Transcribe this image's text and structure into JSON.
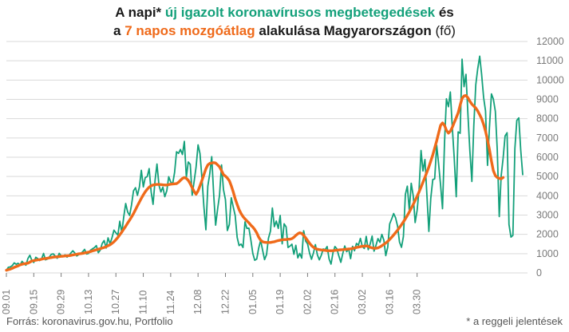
{
  "title": {
    "l1_a": "A napi* ",
    "l1_b": "új igazolt koronavírusos megbetegedések",
    "l1_c": " és",
    "l2_a": "a ",
    "l2_b": "7 napos mozgóátlag",
    "l2_c": " alakulása Magyarországon",
    "l2_d": " (fő)"
  },
  "footer": {
    "source": "Forrás: koronavirus.gov.hu, Portfolio",
    "note": "* a reggeli jelentések"
  },
  "colors": {
    "daily": "#13a07a",
    "avg": "#ef6a1a",
    "grid": "#d9d9d9",
    "text": "#7a7a7a"
  },
  "chart_data": {
    "type": "line",
    "x_start": "2020-09-01",
    "xticks": [
      "09.01",
      "09.15",
      "09.29",
      "10.13",
      "10.27",
      "11.10",
      "11.24",
      "12.08",
      "12.22",
      "01.05",
      "01.19",
      "02.02",
      "02.16",
      "03.02",
      "03.16",
      "03.30"
    ],
    "yticks": [
      0,
      1000,
      2000,
      3000,
      4000,
      5000,
      6000,
      7000,
      8000,
      9000,
      10000,
      11000,
      12000
    ],
    "ylim": [
      0,
      12000
    ],
    "grid": "horizontal",
    "series": [
      {
        "name": "új igazolt koronavírusos megbetegedések",
        "type": "daily",
        "values": [
          140,
          292,
          310,
          380,
          520,
          450,
          500,
          420,
          600,
          480,
          400,
          750,
          920,
          650,
          540,
          810,
          750,
          640,
          730,
          1010,
          680,
          720,
          830,
          970,
          990,
          870,
          760,
          1020,
          900,
          870,
          940,
          820,
          910,
          1040,
          1150,
          1030,
          880,
          950,
          1000,
          1100,
          1220,
          980,
          1010,
          1180,
          1250,
          1310,
          1420,
          1050,
          1180,
          1530,
          1680,
          1290,
          1820,
          1510,
          1820,
          2220,
          2080,
          1960,
          2680,
          2090,
          2890,
          3600,
          3170,
          2980,
          3520,
          4260,
          4420,
          4020,
          4460,
          5320,
          4460,
          4940,
          5000,
          5410,
          4200,
          3560,
          4800,
          5650,
          4540,
          4200,
          4450,
          3950,
          4260,
          4990,
          4720,
          4600,
          5220,
          6280,
          6200,
          6400,
          6140,
          6820,
          4960,
          5750,
          5630,
          4030,
          4760,
          5490,
          6640,
          6190,
          4890,
          3430,
          2240,
          4500,
          5160,
          6030,
          4050,
          2480,
          3320,
          4030,
          5600,
          4330,
          3800,
          2200,
          2510,
          3900,
          3420,
          2980,
          1840,
          1420,
          1500,
          1320,
          2650,
          2310,
          2320,
          1720,
          1010,
          660,
          720,
          1280,
          1690,
          1190,
          690,
          950,
          1800,
          2170,
          3370,
          2400,
          2690,
          2310,
          2980,
          1510,
          2550,
          2390,
          1320,
          1390,
          1490,
          970,
          1430,
          780,
          1010,
          770,
          2190,
          1650,
          1510,
          1030,
          710,
          1040,
          1470,
          940,
          680,
          920,
          1240,
          1210,
          1370,
          720,
          460,
          1060,
          1370,
          1240,
          880,
          550,
          1000,
          1400,
          1100,
          1250,
          740,
          1380,
          1150,
          1530,
          1440,
          1790,
          1370,
          1270,
          1900,
          1210,
          1500,
          1910,
          1130,
          1440,
          1780,
          1590,
          2000,
          1700,
          900,
          1350,
          2540,
          2800,
          3080,
          2860,
          2430,
          1600,
          1330,
          1890,
          4080,
          4500,
          3240,
          4650,
          4000,
          2610,
          3250,
          4320,
          6350,
          5290,
          5880,
          4080,
          2150,
          3870,
          4840,
          4880,
          6620,
          5660,
          4550,
          3330,
          6730,
          9030,
          8620,
          9380,
          7530,
          5940,
          3950,
          7310,
          7240,
          11080,
          9660,
          10300,
          8180,
          6310,
          4740,
          7630,
          9760,
          10580,
          11240,
          10300,
          9100,
          8400,
          5580,
          7530,
          9280,
          9020,
          8380,
          6390,
          2920,
          5030,
          5970,
          7100,
          7270,
          2510,
          1860,
          1950,
          6460,
          7910,
          8040,
          6380,
          5100
        ]
      },
      {
        "name": "7 napos mozgóátlag",
        "type": "average",
        "values": [
          140,
          170,
          200,
          240,
          290,
          330,
          370,
          420,
          450,
          470,
          490,
          510,
          560,
          620,
          640,
          660,
          680,
          690,
          710,
          740,
          750,
          760,
          780,
          800,
          820,
          830,
          840,
          850,
          860,
          870,
          880,
          890,
          900,
          910,
          930,
          950,
          970,
          990,
          1000,
          1020,
          1040,
          1060,
          1080,
          1110,
          1140,
          1170,
          1200,
          1230,
          1260,
          1290,
          1320,
          1360,
          1410,
          1460,
          1530,
          1620,
          1720,
          1840,
          1980,
          2120,
          2270,
          2420,
          2580,
          2740,
          2900,
          3080,
          3280,
          3480,
          3680,
          3870,
          4050,
          4210,
          4340,
          4450,
          4520,
          4560,
          4580,
          4590,
          4590,
          4580,
          4570,
          4560,
          4560,
          4580,
          4600,
          4610,
          4620,
          4630,
          4700,
          4800,
          4900,
          4950,
          4900,
          4800,
          4620,
          4420,
          4220,
          4080,
          4260,
          4520,
          4800,
          5100,
          5400,
          5600,
          5680,
          5700,
          5720,
          5700,
          5600,
          5500,
          5300,
          5100,
          5020,
          4920,
          4780,
          4520,
          4200,
          3850,
          3550,
          3280,
          3080,
          2920,
          2800,
          2700,
          2600,
          2480,
          2380,
          2250,
          2080,
          1860,
          1700,
          1620,
          1590,
          1580,
          1580,
          1580,
          1600,
          1620,
          1650,
          1680,
          1700,
          1720,
          1730,
          1730,
          1750,
          1750,
          1780,
          1850,
          1950,
          2030,
          2080,
          2050,
          1950,
          1820,
          1680,
          1540,
          1420,
          1330,
          1270,
          1230,
          1210,
          1190,
          1180,
          1170,
          1150,
          1150,
          1150,
          1150,
          1170,
          1180,
          1190,
          1200,
          1210,
          1220,
          1230,
          1240,
          1250,
          1270,
          1290,
          1320,
          1340,
          1360,
          1380,
          1390,
          1400,
          1380,
          1330,
          1300,
          1280,
          1280,
          1300,
          1350,
          1410,
          1480,
          1550,
          1640,
          1740,
          1850,
          1970,
          2090,
          2220,
          2360,
          2500,
          2650,
          2810,
          2980,
          3160,
          3350,
          3550,
          3760,
          3980,
          4200,
          4450,
          4700,
          4960,
          5220,
          5500,
          5800,
          6120,
          6480,
          6850,
          7250,
          7650,
          7780,
          7650,
          7400,
          7250,
          7350,
          7550,
          7800,
          8050,
          8300,
          8700,
          9050,
          9180,
          9200,
          9080,
          8900,
          8750,
          8650,
          8550,
          8400,
          8200,
          8000,
          7700,
          7350,
          6900,
          6400,
          5800,
          5300,
          5050,
          4950,
          4900,
          4880,
          4950
        ]
      }
    ]
  }
}
